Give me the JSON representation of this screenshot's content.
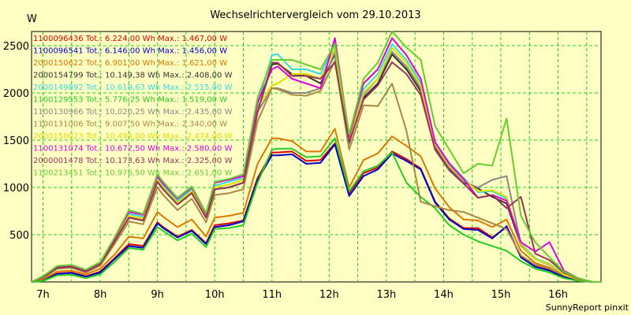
{
  "chart_data": {
    "type": "line",
    "title": "Wechselrichtervergleich vom 29.10.2013",
    "ylabel": "W",
    "ylim": [
      0,
      2650
    ],
    "xlim": [
      6.8,
      16.75
    ],
    "grid": true,
    "yticks": [
      500,
      1000,
      1500,
      2000,
      2500
    ],
    "xticks": [
      {
        "value": 7,
        "label": "7h"
      },
      {
        "value": 8,
        "label": "8h"
      },
      {
        "value": 9,
        "label": "9h"
      },
      {
        "value": 10,
        "label": "10h"
      },
      {
        "value": 11,
        "label": "11h"
      },
      {
        "value": 12,
        "label": "12h"
      },
      {
        "value": 13,
        "label": "13h"
      },
      {
        "value": 14,
        "label": "14h"
      },
      {
        "value": 15,
        "label": "15h"
      },
      {
        "value": 16,
        "label": "16h"
      }
    ],
    "x": [
      6.8,
      7.0,
      7.25,
      7.5,
      7.75,
      8.0,
      8.25,
      8.5,
      8.75,
      9.0,
      9.1,
      9.35,
      9.6,
      9.85,
      10.0,
      10.25,
      10.5,
      10.75,
      11.0,
      11.1,
      11.35,
      11.6,
      11.85,
      12.1,
      12.35,
      12.6,
      12.85,
      13.1,
      13.35,
      13.6,
      13.85,
      14.1,
      14.35,
      14.6,
      14.85,
      15.1,
      15.35,
      15.6,
      15.85,
      16.1,
      16.35,
      16.6,
      16.75
    ],
    "series": [
      {
        "name": "1100096436 Tot.: 6.224,00 Wh Max.: 1.467,00 W",
        "color": "#dd0000",
        "values": [
          0,
          20,
          90,
          100,
          60,
          110,
          250,
          400,
          380,
          630,
          580,
          480,
          550,
          410,
          600,
          620,
          650,
          1100,
          1370,
          1370,
          1380,
          1280,
          1290,
          1467,
          940,
          1150,
          1210,
          1380,
          1300,
          1200,
          850,
          670,
          570,
          570,
          470,
          580,
          270,
          170,
          130,
          60,
          20,
          0,
          0
        ]
      },
      {
        "name": "1100096541 Tot.: 6.146,00 Wh Max.: 1.456,00 W",
        "color": "#0000cc",
        "values": [
          0,
          15,
          85,
          95,
          55,
          100,
          240,
          380,
          360,
          620,
          570,
          470,
          540,
          400,
          580,
          600,
          640,
          1080,
          1340,
          1340,
          1350,
          1250,
          1260,
          1456,
          910,
          1120,
          1190,
          1360,
          1280,
          1190,
          840,
          660,
          560,
          550,
          460,
          590,
          260,
          160,
          120,
          50,
          15,
          0,
          0
        ]
      },
      {
        "name": "2000150622 Tot.: 6.901,00 Wh Max.: 1.621,00 W",
        "color": "#dd7700",
        "values": [
          0,
          30,
          110,
          120,
          80,
          140,
          290,
          480,
          460,
          740,
          690,
          580,
          660,
          480,
          680,
          700,
          730,
          1250,
          1520,
          1520,
          1490,
          1380,
          1380,
          1621,
          1000,
          1290,
          1360,
          1540,
          1440,
          1330,
          990,
          790,
          660,
          650,
          580,
          660,
          330,
          200,
          150,
          70,
          25,
          0,
          0
        ]
      },
      {
        "name": "2000154799 Tot.: 10.149,38 Wh Max.: 2.408,00 W",
        "color": "#333333",
        "values": [
          0,
          50,
          150,
          160,
          110,
          190,
          430,
          680,
          650,
          1060,
          980,
          820,
          940,
          680,
          980,
          1000,
          1050,
          1800,
          2300,
          2310,
          2200,
          2180,
          2100,
          2408,
          1470,
          1950,
          2100,
          2408,
          2250,
          2020,
          1420,
          1200,
          1050,
          990,
          900,
          830,
          390,
          240,
          180,
          80,
          30,
          0,
          0
        ]
      },
      {
        "name": "2000149892 Tot.: 10.619,63 Wh Max.: 2.515,00 W",
        "color": "#33dddd",
        "values": [
          0,
          55,
          160,
          170,
          120,
          200,
          450,
          720,
          690,
          1100,
          1020,
          860,
          980,
          710,
          1020,
          1060,
          1100,
          1880,
          2400,
          2410,
          2250,
          2250,
          2200,
          2515,
          1530,
          2040,
          2200,
          2515,
          2350,
          2110,
          1480,
          1260,
          1100,
          950,
          960,
          880,
          410,
          250,
          190,
          85,
          35,
          0,
          0
        ]
      },
      {
        "name": "1100129553 Tot.: 5.776,25 Wh Max.: 1.519,00 W",
        "color": "#22cc22",
        "values": [
          0,
          10,
          70,
          75,
          40,
          80,
          210,
          360,
          340,
          580,
          540,
          440,
          510,
          370,
          560,
          570,
          600,
          1050,
          1400,
          1410,
          1410,
          1320,
          1330,
          1519,
          960,
          1170,
          1230,
          1370,
          1050,
          900,
          780,
          600,
          500,
          430,
          380,
          330,
          220,
          140,
          100,
          40,
          10,
          0,
          0
        ]
      },
      {
        "name": "1100130966 Tot.: 10.020,25 Wh Max.: 2.435,00 W",
        "color": "#888888",
        "values": [
          0,
          50,
          150,
          160,
          110,
          190,
          430,
          680,
          650,
          1060,
          980,
          820,
          940,
          680,
          980,
          1000,
          1050,
          1800,
          2050,
          2050,
          2000,
          2000,
          2050,
          2435,
          1460,
          1980,
          2150,
          2435,
          2280,
          2050,
          1440,
          1210,
          1060,
          1000,
          1080,
          1120,
          400,
          240,
          180,
          80,
          30,
          0,
          0
        ]
      },
      {
        "name": "1100131006 Tot.: 9.007,50 Wh Max.: 2.340,00 W",
        "color": "#aa8844",
        "values": [
          0,
          45,
          140,
          150,
          100,
          170,
          400,
          640,
          610,
          1000,
          920,
          760,
          880,
          630,
          920,
          940,
          980,
          1700,
          2050,
          2040,
          1980,
          1970,
          2020,
          2340,
          1400,
          1870,
          1860,
          2100,
          1600,
          850,
          800,
          760,
          740,
          680,
          620,
          560,
          280,
          180,
          140,
          70,
          25,
          0,
          0
        ]
      },
      {
        "name": "2000150023 Tot.: 10.494,00 Wh Max.: 2.474,00 W",
        "color": "#dddd00",
        "values": [
          0,
          55,
          155,
          165,
          115,
          195,
          440,
          700,
          670,
          1080,
          1000,
          840,
          960,
          700,
          1000,
          1030,
          1080,
          1850,
          2080,
          2100,
          2200,
          2200,
          2150,
          2474,
          1500,
          2000,
          2150,
          2474,
          2320,
          2080,
          1460,
          1230,
          1080,
          960,
          970,
          900,
          400,
          240,
          185,
          80,
          30,
          0,
          0
        ]
      },
      {
        "name": "1100131074 Tot.: 10.672,50 Wh Max.: 2.580,00 W",
        "color": "#dd00dd",
        "values": [
          0,
          60,
          165,
          175,
          125,
          205,
          460,
          740,
          710,
          1120,
          1040,
          880,
          1000,
          720,
          1050,
          1080,
          1120,
          1900,
          2250,
          2280,
          2150,
          2100,
          2050,
          2580,
          1540,
          2100,
          2250,
          2580,
          2400,
          2150,
          1480,
          1250,
          1090,
          890,
          920,
          860,
          420,
          320,
          420,
          120,
          40,
          0,
          0
        ]
      },
      {
        "name": "2000001478 Tot.: 10.173,63 Wh Max.: 2.325,00 W",
        "color": "#993355",
        "values": [
          0,
          50,
          150,
          160,
          110,
          190,
          430,
          680,
          650,
          1060,
          980,
          820,
          940,
          680,
          980,
          1000,
          1050,
          1800,
          2320,
          2320,
          2180,
          2180,
          2150,
          2325,
          1480,
          1930,
          2080,
          2325,
          2200,
          1980,
          1400,
          1180,
          1040,
          890,
          920,
          780,
          900,
          300,
          230,
          100,
          35,
          0,
          0
        ]
      },
      {
        "name": "1100213451 Tot.: 10.976,50 Wh Max.: 2.651,00 W",
        "color": "#66cc33",
        "values": [
          0,
          60,
          170,
          180,
          130,
          210,
          470,
          760,
          720,
          1140,
          1060,
          890,
          1010,
          730,
          1060,
          1090,
          1140,
          1950,
          2350,
          2350,
          2350,
          2300,
          2250,
          2520,
          1560,
          2150,
          2320,
          2651,
          2480,
          2350,
          1650,
          1400,
          1150,
          1250,
          1230,
          1730,
          700,
          420,
          260,
          110,
          40,
          0,
          0
        ]
      }
    ]
  },
  "footer": "SunnyReport pinxit"
}
